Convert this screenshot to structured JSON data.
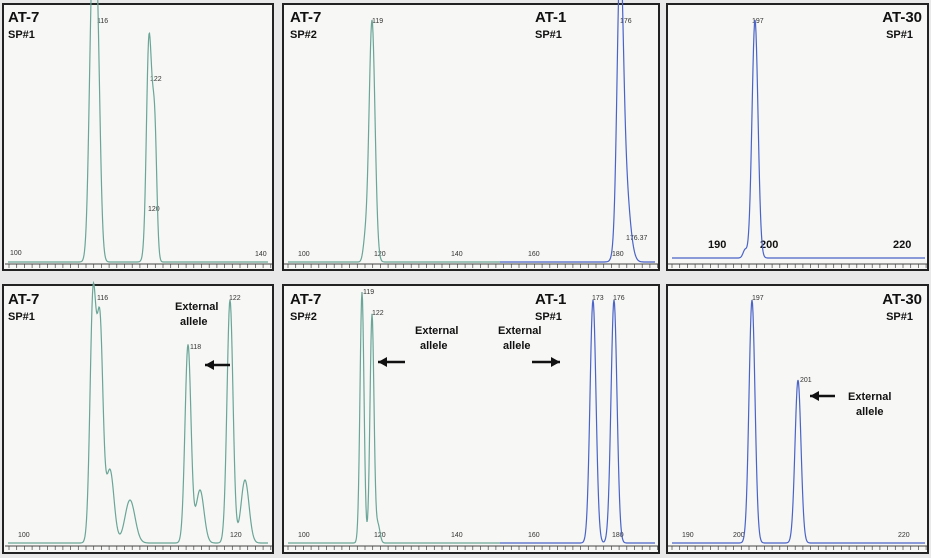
{
  "panels": [
    {
      "texts": [
        "AT-7",
        "SP#1",
        "116",
        "122",
        "120",
        "100",
        "140"
      ]
    },
    {
      "texts": [
        "AT-7",
        "SP#2",
        "AT-1",
        "SP#1",
        "119",
        "176",
        "176.37",
        "100",
        "120",
        "140",
        "160",
        "180"
      ]
    },
    {
      "texts": [
        "AT-30",
        "SP#1",
        "197",
        "190",
        "200",
        "220"
      ]
    },
    {
      "texts": [
        "AT-7",
        "SP#1",
        "External",
        "allele",
        "116",
        "118",
        "122",
        "100",
        "120"
      ]
    },
    {
      "texts": [
        "AT-7",
        "SP#2",
        "External",
        "allele",
        "AT-1",
        "SP#1",
        "External",
        "allele",
        "119",
        "122",
        "173",
        "176",
        "100",
        "120",
        "140",
        "160",
        "180"
      ]
    },
    {
      "texts": [
        "AT-30",
        "SP#1",
        "197",
        "201",
        "External",
        "allele",
        "190",
        "200",
        "220"
      ]
    }
  ]
}
